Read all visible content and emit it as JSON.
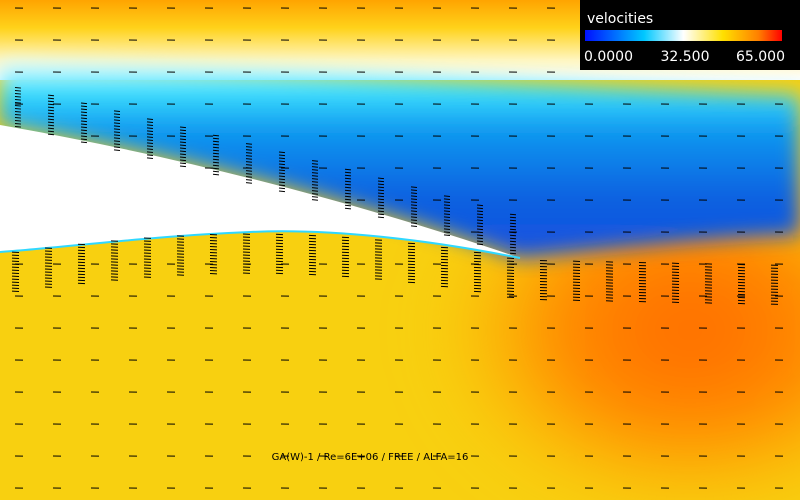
{
  "legend": {
    "title": "velocities",
    "labels": [
      "0.0000",
      "32.500",
      "65.000"
    ]
  },
  "caption": "GA(W)-1 / Re=6E+06 / FREE / ALFA=16"
}
